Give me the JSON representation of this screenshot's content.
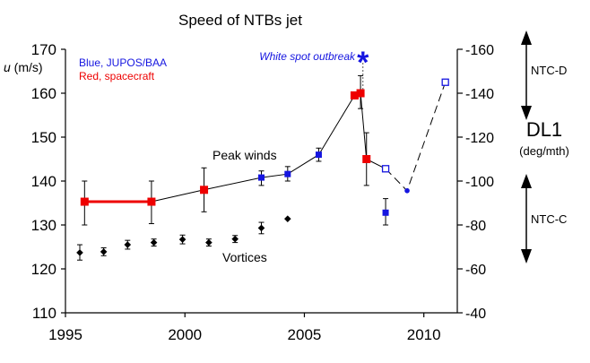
{
  "chart_data": {
    "type": "scatter",
    "title": "Speed of NTBs jet",
    "ylabel_italic": "u",
    "ylabel_rest": " (m/s)",
    "ylim": [
      110,
      170
    ],
    "xlim": [
      1995,
      2011.4
    ],
    "x_ticks": [
      1995,
      2000,
      2005,
      2010
    ],
    "y_ticks": [
      110,
      120,
      130,
      140,
      150,
      160,
      170
    ],
    "right_ticks": [
      -160,
      -140,
      -120,
      -100,
      -80,
      -60,
      -40
    ],
    "right_title": "DL1",
    "right_units": "(deg/mth)",
    "legend": {
      "blue": "Blue, JUPOS/BAA",
      "red": "Red, spacecraft"
    },
    "annotations": {
      "outbreak": "White spot outbreak",
      "peak": "Peak winds",
      "vortices": "Vortices",
      "ntcd": "NTC-D",
      "ntcc": "NTC-C"
    },
    "colors": {
      "blue": "#1515e0",
      "red": "#ee0000",
      "black": "#000000",
      "axis": "#000000"
    },
    "series": [
      {
        "key": "red-line",
        "color": "#ee0000",
        "points": [
          {
            "x": 1995.8,
            "y": 135.3
          },
          {
            "x": 1998.6,
            "y": 135.3
          }
        ]
      },
      {
        "key": "peak",
        "points": [
          {
            "x": 1995.8,
            "y": 135.3,
            "lo": 130.0,
            "hi": 140.0,
            "c": "red"
          },
          {
            "x": 1998.6,
            "y": 135.3,
            "lo": 130.3,
            "hi": 140.0,
            "c": "red"
          },
          {
            "x": 2000.8,
            "y": 138.0,
            "lo": 133.0,
            "hi": 143.0,
            "c": "red"
          },
          {
            "x": 2003.2,
            "y": 140.8,
            "lo": 139.0,
            "hi": 142.3,
            "c": "blue"
          },
          {
            "x": 2004.3,
            "y": 141.6,
            "lo": 140.0,
            "hi": 143.3,
            "c": "blue"
          },
          {
            "x": 2005.6,
            "y": 146.0,
            "lo": 144.5,
            "hi": 147.5,
            "c": "blue"
          },
          {
            "x": 2007.1,
            "y": 159.5,
            "c": "red"
          },
          {
            "x": 2007.35,
            "y": 160.0,
            "lo": 156.5,
            "hi": 164.0,
            "c": "red"
          },
          {
            "x": 2007.6,
            "y": 145.0,
            "lo": 139.0,
            "hi": 151.0,
            "c": "red"
          }
        ]
      },
      {
        "key": "peak-late",
        "points": [
          {
            "x": 2008.4,
            "y": 142.8,
            "c": "blue",
            "open": true
          },
          {
            "x": 2009.3,
            "y": 137.8,
            "c": "blue",
            "small": true
          },
          {
            "x": 2010.9,
            "y": 162.5,
            "c": "blue",
            "open": true
          }
        ]
      },
      {
        "key": "blue-isolated",
        "points": [
          {
            "x": 2008.4,
            "y": 132.8,
            "lo": 130.0,
            "hi": 136.0,
            "c": "blue"
          }
        ]
      },
      {
        "key": "vortices",
        "points": [
          {
            "x": 1995.6,
            "y": 123.7,
            "lo": 122.0,
            "hi": 125.5
          },
          {
            "x": 1996.6,
            "y": 123.9,
            "lo": 123.0,
            "hi": 124.8
          },
          {
            "x": 1997.6,
            "y": 125.5,
            "lo": 124.5,
            "hi": 126.5
          },
          {
            "x": 1998.7,
            "y": 126.0,
            "lo": 125.2,
            "hi": 126.8
          },
          {
            "x": 1999.9,
            "y": 126.7,
            "lo": 125.7,
            "hi": 127.7
          },
          {
            "x": 2001.0,
            "y": 126.0,
            "lo": 125.2,
            "hi": 126.8
          },
          {
            "x": 2002.1,
            "y": 126.8,
            "lo": 126.0,
            "hi": 127.6
          },
          {
            "x": 2003.2,
            "y": 129.3,
            "lo": 128.0,
            "hi": 130.6
          },
          {
            "x": 2004.3,
            "y": 131.4
          }
        ]
      }
    ],
    "outbreak_x": 2007.45
  }
}
